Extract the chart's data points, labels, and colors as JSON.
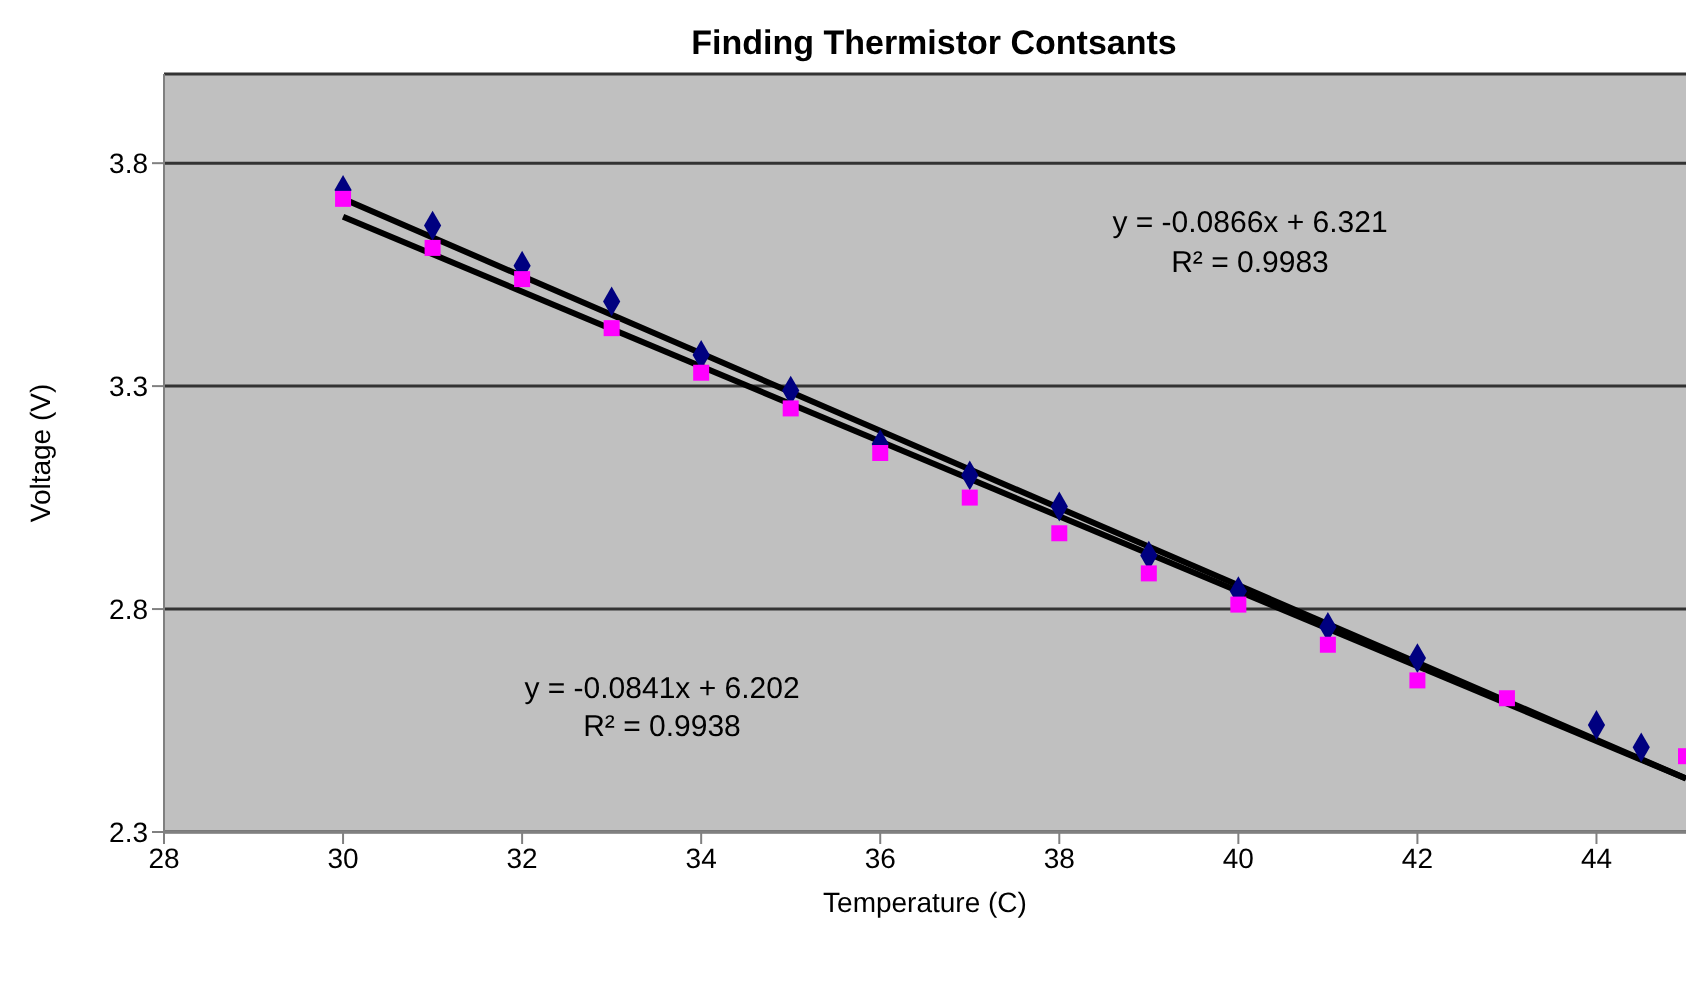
{
  "chart_data": {
    "type": "scatter",
    "title": "Finding Thermistor Contsants",
    "xlabel": "Temperature (C)",
    "ylabel": "Voltage (V)",
    "annotations": [
      "y = -0.0866x + 6.321",
      "R² = 0.9983",
      "y = -0.0841x + 6.202",
      "R² = 0.9938"
    ],
    "series": [
      {
        "color": "#000080",
        "marker": "diamond",
        "x": [
          30,
          31,
          32,
          33,
          34,
          35,
          36,
          37,
          38,
          39,
          40,
          41,
          42,
          43,
          44,
          44.5
        ],
        "values": [
          3.74,
          3.66,
          3.57,
          3.49,
          3.37,
          3.29,
          3.17,
          3.1,
          3.03,
          2.92,
          2.84,
          2.76,
          2.69,
          null,
          2.54,
          2.49
        ]
      },
      {
        "color": "#ff00ff",
        "marker": "square",
        "x": [
          30,
          31,
          32,
          33,
          34,
          35,
          36,
          37,
          38,
          39,
          40,
          41,
          42,
          43,
          45
        ],
        "values": [
          3.72,
          3.61,
          3.54,
          3.43,
          3.33,
          3.25,
          3.15,
          3.05,
          2.97,
          2.88,
          2.81,
          2.72,
          2.64,
          2.6,
          2.47
        ]
      },
      {
        "type": "line",
        "color": "#000000",
        "x": [
          30,
          45
        ],
        "values": [
          3.72,
          2.42
        ]
      },
      {
        "type": "line",
        "color": "#000000",
        "x": [
          30,
          45
        ],
        "values": [
          3.68,
          2.42
        ]
      }
    ],
    "xlim": [
      28,
      45
    ],
    "xticks": [
      28,
      30,
      32,
      34,
      36,
      38,
      40,
      42,
      44
    ],
    "ylim": [
      2.3,
      4.0
    ],
    "yticks": [
      2.3,
      2.8,
      3.3,
      3.8
    ],
    "grid": "y"
  }
}
